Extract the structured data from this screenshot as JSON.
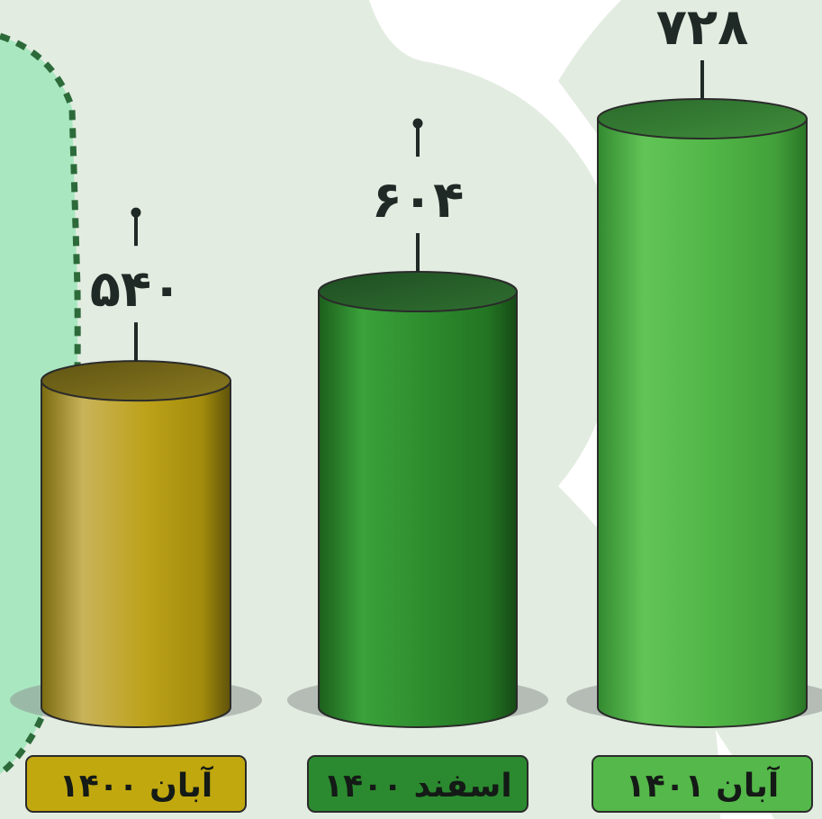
{
  "chart_data": {
    "type": "bar",
    "style": "3d-cylinder",
    "categories": [
      "آبان ۱۴۰۰",
      "اسفند ۱۴۰۰",
      "آبان ۱۴۰۱"
    ],
    "values": [
      540,
      604,
      728
    ],
    "value_labels": [
      "۵۴۰",
      "۶۰۴",
      "۷۲۸"
    ],
    "bar_colors": [
      "#b9a51a",
      "#2c8a2c",
      "#4fb646"
    ],
    "label_box_colors": [
      "#c1a80e",
      "#2b8a2f",
      "#55b84a"
    ],
    "title": "",
    "xlabel": "",
    "ylabel": "",
    "grid": false,
    "legend": "none"
  }
}
